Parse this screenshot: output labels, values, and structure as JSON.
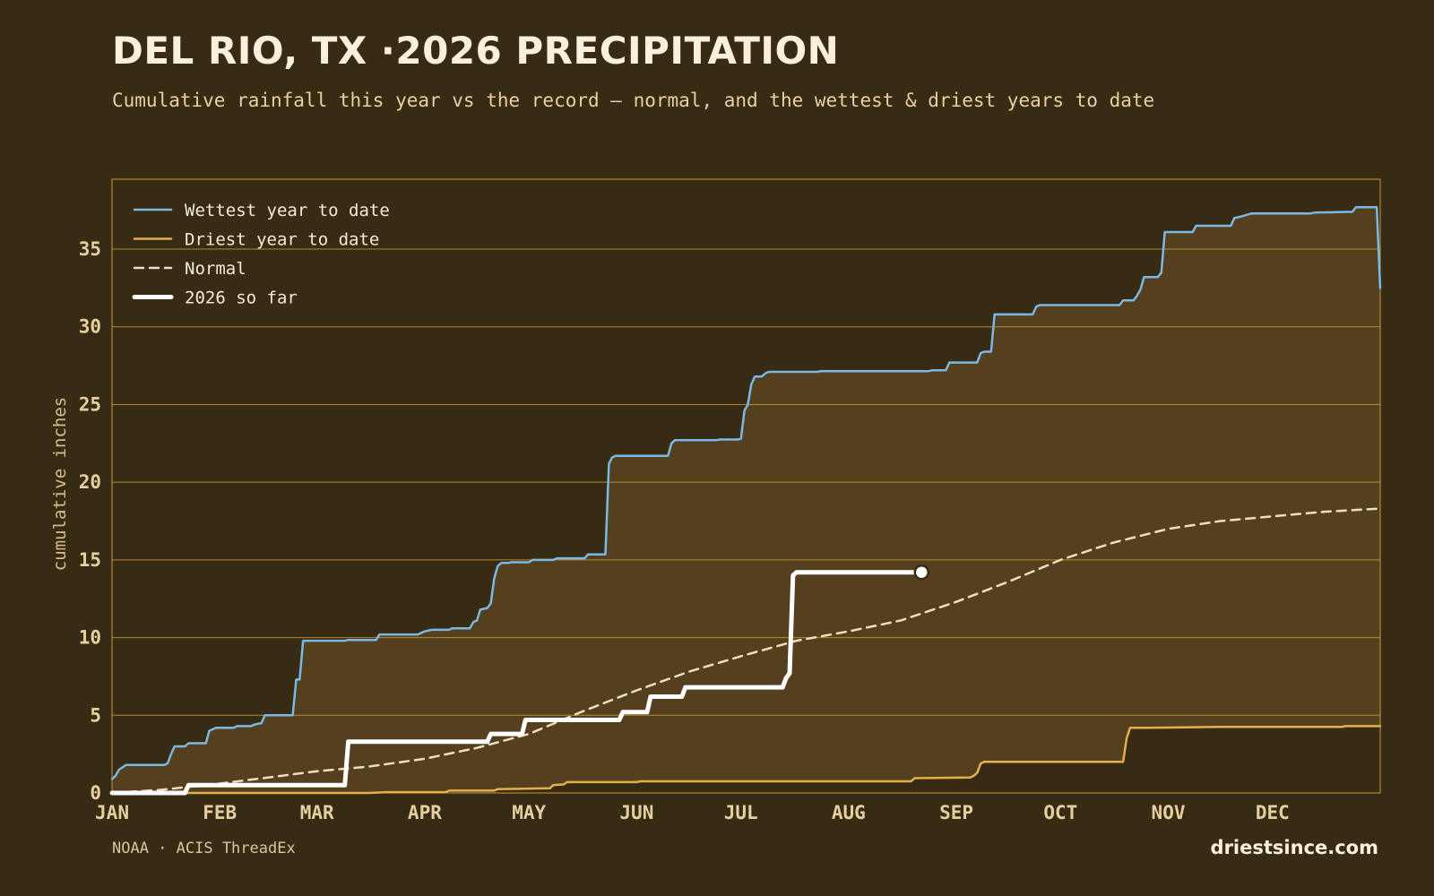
{
  "header": {
    "title": "DEL RIO, TX ·2026 PRECIPITATION",
    "subtitle": "Cumulative rainfall this year vs the record — normal, and the wettest & driest years to date"
  },
  "footer": {
    "source": "NOAA · ACIS ThreadEx",
    "brand": "driestsince.com"
  },
  "colors": {
    "background": "#382b14",
    "band_fill": "#54401f",
    "grid": "#c39a3c",
    "wettest": "#7bb8e3",
    "driest": "#e3b04b",
    "normal": "#efdfbf",
    "current": "#ffffff"
  },
  "chart_data": {
    "type": "line",
    "ylabel": "cumulative inches",
    "ylim": [
      0,
      39.5
    ],
    "yticks": [
      0,
      5,
      10,
      15,
      20,
      25,
      30,
      35
    ],
    "x_unit": "day of year",
    "xlim": [
      1,
      366
    ],
    "month_ticks": [
      {
        "label": "JAN",
        "day": 1
      },
      {
        "label": "FEB",
        "day": 32
      },
      {
        "label": "MAR",
        "day": 60
      },
      {
        "label": "APR",
        "day": 91
      },
      {
        "label": "MAY",
        "day": 121
      },
      {
        "label": "JUN",
        "day": 152
      },
      {
        "label": "JUL",
        "day": 182
      },
      {
        "label": "AUG",
        "day": 213
      },
      {
        "label": "SEP",
        "day": 244
      },
      {
        "label": "OCT",
        "day": 274
      },
      {
        "label": "NOV",
        "day": 305
      },
      {
        "label": "DEC",
        "day": 335
      }
    ],
    "grid": true,
    "legend_position": "top-left",
    "series": [
      {
        "name": "Wettest year to date",
        "key": "wettest",
        "step": true,
        "points": [
          [
            1,
            0.9
          ],
          [
            2,
            1.1
          ],
          [
            3,
            1.5
          ],
          [
            5,
            1.8
          ],
          [
            16,
            1.8
          ],
          [
            17,
            1.9
          ],
          [
            18,
            2.5
          ],
          [
            19,
            3.0
          ],
          [
            22,
            3.0
          ],
          [
            23,
            3.2
          ],
          [
            28,
            3.2
          ],
          [
            29,
            4.0
          ],
          [
            30,
            4.1
          ],
          [
            31,
            4.2
          ],
          [
            36,
            4.2
          ],
          [
            37,
            4.3
          ],
          [
            41,
            4.3
          ],
          [
            42,
            4.4
          ],
          [
            44,
            4.5
          ],
          [
            45,
            5.0
          ],
          [
            53,
            5.0
          ],
          [
            54,
            7.3
          ],
          [
            55,
            7.3
          ],
          [
            56,
            9.8
          ],
          [
            68,
            9.8
          ],
          [
            69,
            9.85
          ],
          [
            77,
            9.85
          ],
          [
            78,
            10.2
          ],
          [
            89,
            10.2
          ],
          [
            90,
            10.3
          ],
          [
            91,
            10.4
          ],
          [
            93,
            10.5
          ],
          [
            98,
            10.5
          ],
          [
            99,
            10.6
          ],
          [
            104,
            10.6
          ],
          [
            105,
            11.0
          ],
          [
            106,
            11.1
          ],
          [
            107,
            11.8
          ],
          [
            109,
            11.9
          ],
          [
            110,
            12.2
          ],
          [
            111,
            13.8
          ],
          [
            112,
            14.6
          ],
          [
            113,
            14.8
          ],
          [
            115,
            14.8
          ],
          [
            116,
            14.85
          ],
          [
            121,
            14.85
          ],
          [
            122,
            15.0
          ],
          [
            128,
            15.0
          ],
          [
            129,
            15.1
          ],
          [
            137,
            15.1
          ],
          [
            138,
            15.35
          ],
          [
            143,
            15.35
          ],
          [
            144,
            21.2
          ],
          [
            145,
            21.6
          ],
          [
            146,
            21.7
          ],
          [
            161,
            21.7
          ],
          [
            162,
            22.5
          ],
          [
            163,
            22.7
          ],
          [
            175,
            22.7
          ],
          [
            176,
            22.75
          ],
          [
            181,
            22.75
          ],
          [
            182,
            22.8
          ],
          [
            183,
            24.6
          ],
          [
            184,
            25.0
          ],
          [
            185,
            26.3
          ],
          [
            186,
            26.8
          ],
          [
            188,
            26.8
          ],
          [
            189,
            27.0
          ],
          [
            190,
            27.1
          ],
          [
            204,
            27.1
          ],
          [
            205,
            27.15
          ],
          [
            236,
            27.15
          ],
          [
            237,
            27.2
          ],
          [
            241,
            27.2
          ],
          [
            242,
            27.7
          ],
          [
            250,
            27.7
          ],
          [
            251,
            28.3
          ],
          [
            252,
            28.4
          ],
          [
            254,
            28.4
          ],
          [
            255,
            30.8
          ],
          [
            266,
            30.8
          ],
          [
            267,
            31.3
          ],
          [
            268,
            31.4
          ],
          [
            291,
            31.4
          ],
          [
            292,
            31.7
          ],
          [
            295,
            31.7
          ],
          [
            296,
            32.0
          ],
          [
            297,
            32.4
          ],
          [
            298,
            33.2
          ],
          [
            302,
            33.2
          ],
          [
            303,
            33.5
          ],
          [
            304,
            36.1
          ],
          [
            312,
            36.1
          ],
          [
            313,
            36.5
          ],
          [
            323,
            36.5
          ],
          [
            324,
            37.0
          ],
          [
            326,
            37.1
          ],
          [
            329,
            37.3
          ],
          [
            346,
            37.3
          ],
          [
            347,
            37.35
          ],
          [
            358,
            37.4
          ],
          [
            359,
            37.7
          ],
          [
            365,
            37.7
          ],
          [
            366,
            32.5
          ]
        ]
      },
      {
        "name": "Driest year to date",
        "key": "driest",
        "step": true,
        "points": [
          [
            1,
            0.0
          ],
          [
            75,
            0.0
          ],
          [
            80,
            0.05
          ],
          [
            97,
            0.05
          ],
          [
            98,
            0.15
          ],
          [
            111,
            0.15
          ],
          [
            112,
            0.25
          ],
          [
            127,
            0.3
          ],
          [
            128,
            0.5
          ],
          [
            131,
            0.55
          ],
          [
            132,
            0.7
          ],
          [
            152,
            0.7
          ],
          [
            153,
            0.75
          ],
          [
            231,
            0.75
          ],
          [
            232,
            0.95
          ],
          [
            248,
            1.0
          ],
          [
            249,
            1.1
          ],
          [
            250,
            1.3
          ],
          [
            251,
            1.9
          ],
          [
            252,
            2.0
          ],
          [
            292,
            2.0
          ],
          [
            293,
            3.5
          ],
          [
            294,
            4.2
          ],
          [
            300,
            4.2
          ],
          [
            320,
            4.25
          ],
          [
            355,
            4.25
          ],
          [
            356,
            4.3
          ],
          [
            366,
            4.3
          ]
        ]
      },
      {
        "name": "Normal",
        "key": "normal",
        "step": false,
        "points": [
          [
            1,
            0.0
          ],
          [
            15,
            0.2
          ],
          [
            32,
            0.6
          ],
          [
            46,
            1.0
          ],
          [
            60,
            1.4
          ],
          [
            75,
            1.7
          ],
          [
            91,
            2.2
          ],
          [
            106,
            2.9
          ],
          [
            121,
            3.8
          ],
          [
            137,
            5.3
          ],
          [
            152,
            6.6
          ],
          [
            167,
            7.8
          ],
          [
            182,
            8.8
          ],
          [
            198,
            9.8
          ],
          [
            213,
            10.4
          ],
          [
            228,
            11.1
          ],
          [
            244,
            12.3
          ],
          [
            259,
            13.6
          ],
          [
            274,
            15.0
          ],
          [
            289,
            16.1
          ],
          [
            305,
            17.0
          ],
          [
            320,
            17.5
          ],
          [
            335,
            17.8
          ],
          [
            350,
            18.1
          ],
          [
            366,
            18.3
          ]
        ]
      },
      {
        "name": "2026 so far",
        "key": "current",
        "step": true,
        "last_value": 14.2,
        "points": [
          [
            1,
            0.0
          ],
          [
            22,
            0.0
          ],
          [
            23,
            0.5
          ],
          [
            68,
            0.5
          ],
          [
            69,
            3.3
          ],
          [
            109,
            3.3
          ],
          [
            110,
            3.8
          ],
          [
            119,
            3.8
          ],
          [
            120,
            4.7
          ],
          [
            147,
            4.7
          ],
          [
            148,
            5.2
          ],
          [
            155,
            5.2
          ],
          [
            156,
            6.2
          ],
          [
            165,
            6.2
          ],
          [
            166,
            6.8
          ],
          [
            194,
            6.8
          ],
          [
            195,
            7.4
          ],
          [
            196,
            7.7
          ],
          [
            197,
            14.0
          ],
          [
            198,
            14.2
          ],
          [
            234,
            14.2
          ]
        ]
      }
    ]
  }
}
